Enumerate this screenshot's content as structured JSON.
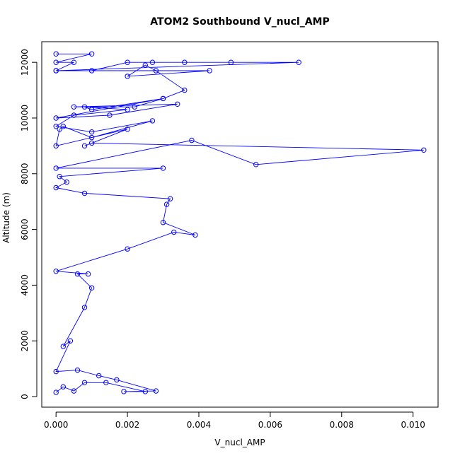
{
  "chart_data": {
    "type": "line",
    "title": "ATOM2 Southbound V_nucl_AMP",
    "xlabel": "V_nucl_AMP",
    "ylabel": "Altitude (m)",
    "xlim": [
      -0.0004,
      0.0107
    ],
    "ylim": [
      -380,
      12740
    ],
    "x_ticks": [
      0.0,
      0.002,
      0.004,
      0.006,
      0.008,
      0.01
    ],
    "x_tick_labels": [
      "0.000",
      "0.002",
      "0.004",
      "0.006",
      "0.008",
      "0.010"
    ],
    "y_ticks": [
      0,
      2000,
      4000,
      6000,
      8000,
      10000,
      12000
    ],
    "y_tick_labels": [
      "0",
      "2000",
      "4000",
      "6000",
      "8000",
      "10000",
      "12000"
    ],
    "grid": false,
    "legend": "none",
    "series_color": "#0000ff",
    "marker": "open-circle",
    "series": [
      {
        "x": [
          0,
          0.001,
          0,
          0.0005,
          0,
          0.0068,
          0.0049,
          0.0036,
          0.0027,
          0.002,
          0.001,
          0,
          0.0043,
          0.002,
          0.0025,
          0.0028,
          0.0036,
          0.003,
          0.0022,
          0.0005,
          0.0034,
          0.0015,
          0,
          0.003,
          0.001,
          0.0008,
          0.002,
          0.0005,
          0,
          0.001,
          0.0027,
          0.001,
          0.0002,
          0.0001,
          0,
          0.002,
          0.0008,
          0.001,
          0.0103,
          0.0056,
          0.0038,
          0,
          0.003,
          0.0001,
          0.0003,
          0,
          0.0008,
          0.0032,
          0.0031,
          0.003,
          0.0039,
          0.0033,
          0.002,
          0,
          0.0009,
          0.0006,
          0.001,
          0.0008,
          0.0002,
          0.0004,
          0,
          0.0006,
          0.0012,
          0.0017,
          0.0028,
          0.0019,
          0.0025,
          0.0014,
          0.0008,
          0.0005,
          0.0002,
          0
        ],
        "y": [
          12300,
          12300,
          12000,
          12000,
          11700,
          12000,
          12000,
          12000,
          12000,
          12000,
          11700,
          11700,
          11700,
          11500,
          11900,
          11700,
          11000,
          10700,
          10400,
          10400,
          10500,
          10100,
          10000,
          10700,
          10300,
          10400,
          10300,
          10100,
          9700,
          9500,
          9900,
          9300,
          9700,
          9600,
          9000,
          9600,
          9000,
          9100,
          8850,
          8330,
          9200,
          8200,
          8200,
          7900,
          7700,
          7500,
          7300,
          7100,
          6900,
          6250,
          5800,
          5900,
          5300,
          4500,
          4400,
          4400,
          3900,
          3200,
          1800,
          2000,
          900,
          950,
          750,
          600,
          200,
          180,
          180,
          500,
          500,
          200,
          350,
          150
        ]
      }
    ]
  }
}
